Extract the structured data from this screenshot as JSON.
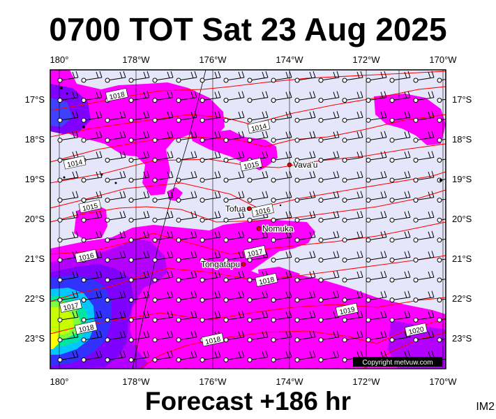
{
  "title": "0700 TOT Sat 23 Aug 2025",
  "footer": "Forecast +186 hr",
  "image_label": "IM2",
  "copyright": "Copyright metvuw.com",
  "axes": {
    "lon_labels": [
      "180°",
      "178°W",
      "176°W",
      "174°W",
      "172°W",
      "170°W"
    ],
    "lat_labels": [
      "17°S",
      "18°S",
      "19°S",
      "20°S",
      "21°S",
      "22°S",
      "23°S"
    ]
  },
  "places": [
    {
      "name": "Vava'u",
      "lon": -174.0,
      "lat": -18.65
    },
    {
      "name": "Tofua",
      "lon": -175.05,
      "lat": -19.75
    },
    {
      "name": "Nomuka",
      "lon": -174.8,
      "lat": -20.25
    },
    {
      "name": "Tongatapu",
      "lon": -175.2,
      "lat": -21.15
    }
  ],
  "isobar_labels": [
    {
      "text": "1018",
      "lon": -178.5,
      "lat": -16.9
    },
    {
      "text": "1014",
      "lon": -174.8,
      "lat": -17.7
    },
    {
      "text": "1014",
      "lon": -179.6,
      "lat": -18.6
    },
    {
      "text": "1015",
      "lon": -175.0,
      "lat": -18.65
    },
    {
      "text": "1015",
      "lon": -179.2,
      "lat": -19.7
    },
    {
      "text": "1016",
      "lon": -174.7,
      "lat": -19.8
    },
    {
      "text": "1016",
      "lon": -179.3,
      "lat": -20.95
    },
    {
      "text": "1017",
      "lon": -174.9,
      "lat": -20.85
    },
    {
      "text": "1018",
      "lon": -174.6,
      "lat": -21.55
    },
    {
      "text": "1017",
      "lon": -179.7,
      "lat": -22.2
    },
    {
      "text": "1018",
      "lon": -179.3,
      "lat": -22.75
    },
    {
      "text": "1019",
      "lon": -172.5,
      "lat": -22.3
    },
    {
      "text": "1018",
      "lon": -176.0,
      "lat": -23.05
    },
    {
      "text": "1020",
      "lon": -170.7,
      "lat": -22.8
    }
  ],
  "colors": {
    "background": "#e6e6fa",
    "magenta": "#ff00ff",
    "violet": "#b400ff",
    "purple": "#8000ff",
    "blue": "#0000ff",
    "cyan": "#00c8ff",
    "green": "#00ff80",
    "yellow": "#ffff00",
    "isobar": "#ff0000"
  }
}
